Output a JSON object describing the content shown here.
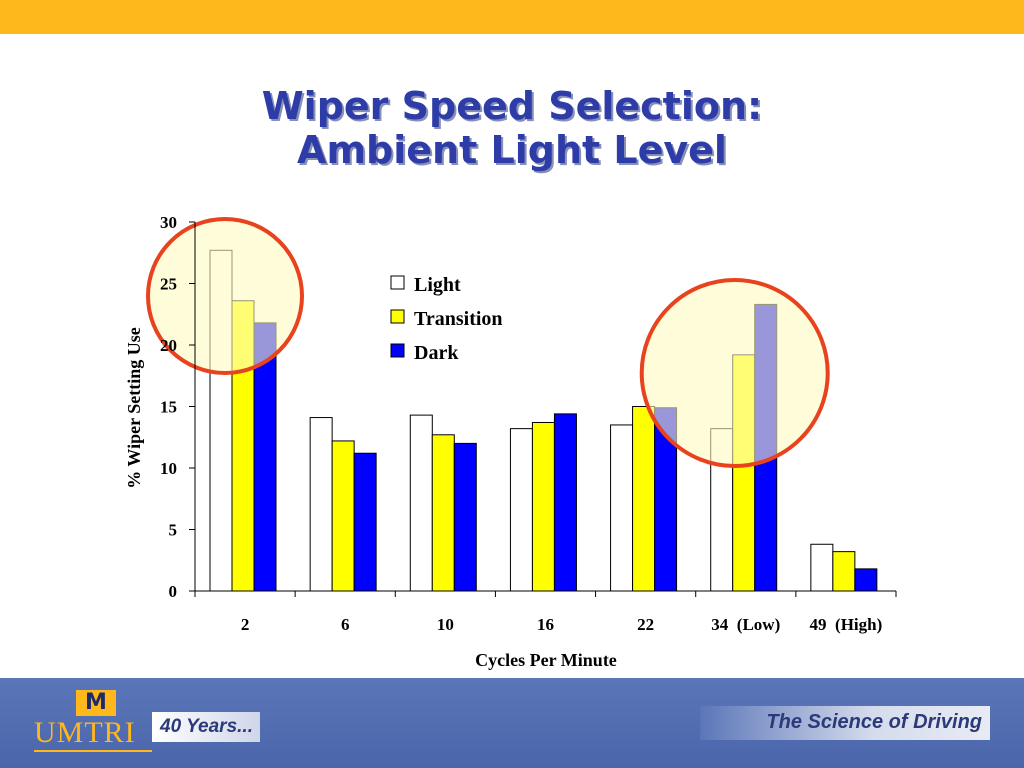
{
  "slide": {
    "title_line1": "Wiper Speed Selection:",
    "title_line2": "Ambient Light Level"
  },
  "footer": {
    "logo_mark": "M",
    "logo_text": "UMTRI",
    "years": "40 Years...",
    "tagline": "The Science of Driving"
  },
  "colors": {
    "top_bar": "#FFB81C",
    "title": "#2E3CA8",
    "highlight_fill": "#FFFBC0",
    "highlight_stroke": "#E8431E",
    "footer": "#4F6BB0"
  },
  "chart_data": {
    "type": "bar",
    "xlabel": "Cycles Per Minute",
    "ylabel": "% Wiper Setting Use",
    "ylim": [
      0,
      30
    ],
    "yticks": [
      0,
      5,
      10,
      15,
      20,
      25,
      30
    ],
    "categories": [
      "2",
      "6",
      "10",
      "16",
      "22",
      "34  (Low)",
      "49  (High)"
    ],
    "series": [
      {
        "name": "Light",
        "color": "#FFFFFF",
        "values": [
          27.7,
          14.1,
          14.3,
          13.2,
          13.5,
          13.2,
          3.8
        ]
      },
      {
        "name": "Transition",
        "color": "#FFFF00",
        "values": [
          23.6,
          12.2,
          12.7,
          13.7,
          15.0,
          19.2,
          3.2
        ]
      },
      {
        "name": "Dark",
        "color": "#0000FF",
        "values": [
          21.8,
          11.2,
          12.0,
          14.4,
          14.9,
          23.3,
          1.8
        ]
      }
    ],
    "legend_position": "top-center",
    "grid": false,
    "highlighted_categories": [
      "2",
      "34  (Low)"
    ]
  }
}
